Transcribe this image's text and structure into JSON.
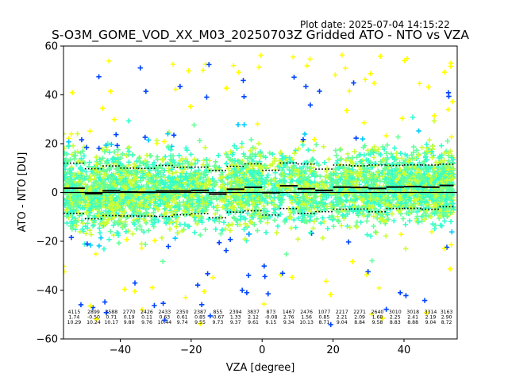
{
  "plot_date": "Plot date: 2025-07-04 14:15:22",
  "chart_data": {
    "type": "scatter",
    "title": "S-O3M_GOME_VOD_XX_M03_20250703Z Gridded ATO - NTO vs VZA",
    "xlabel": "VZA [degree]",
    "ylabel": "ATO - NTO [DU]",
    "xlim": [
      -56,
      55
    ],
    "ylim": [
      -60,
      60
    ],
    "xticks": [
      -40,
      -20,
      0,
      20,
      40
    ],
    "yticks": [
      -60,
      -40,
      -20,
      0,
      20,
      40,
      60
    ],
    "xtick_labels": [
      "−40",
      "−20",
      "0",
      "20",
      "40"
    ],
    "ytick_labels": [
      "−60",
      "−40",
      "−20",
      "0",
      "20",
      "40",
      "60"
    ],
    "grid": false,
    "legend": "none",
    "zero_line": 0,
    "bins": [
      {
        "x_start": -56,
        "x_end": -50,
        "count": "4115",
        "mean": "1.74",
        "std": "10.29"
      },
      {
        "x_start": -50,
        "x_end": -45,
        "count": "2899",
        "mean": "-0.50",
        "std": "10.24"
      },
      {
        "x_start": -45,
        "x_end": -40,
        "count": "3588",
        "mean": "0.71",
        "std": "10.17"
      },
      {
        "x_start": -40,
        "x_end": -35,
        "count": "2770",
        "mean": "0.19",
        "std": "9.80"
      },
      {
        "x_start": -35,
        "x_end": -30,
        "count": "2426",
        "mean": "0.11",
        "std": "9.76"
      },
      {
        "x_start": -30,
        "x_end": -25,
        "count": "2433",
        "mean": "0.63",
        "std": "10.44"
      },
      {
        "x_start": -25,
        "x_end": -20,
        "count": "2350",
        "mean": "0.61",
        "std": "9.74"
      },
      {
        "x_start": -20,
        "x_end": -15,
        "count": "2387",
        "mean": "0.85",
        "std": "9.55"
      },
      {
        "x_start": -15,
        "x_end": -10,
        "count": "855",
        "mean": "-0.67",
        "std": "9.73"
      },
      {
        "x_start": -10,
        "x_end": -5,
        "count": "2394",
        "mean": "1.33",
        "std": "9.37"
      },
      {
        "x_start": -5,
        "x_end": 0,
        "count": "3837",
        "mean": "2.12",
        "std": "9.61"
      },
      {
        "x_start": 0,
        "x_end": 5,
        "count": "873",
        "mean": "-0.08",
        "std": "9.15"
      },
      {
        "x_start": 5,
        "x_end": 10,
        "count": "1467",
        "mean": "2.76",
        "std": "9.34"
      },
      {
        "x_start": 10,
        "x_end": 15,
        "count": "2476",
        "mean": "1.56",
        "std": "10.13"
      },
      {
        "x_start": 15,
        "x_end": 20,
        "count": "1077",
        "mean": "0.85",
        "std": "8.71"
      },
      {
        "x_start": 20,
        "x_end": 25,
        "count": "2217",
        "mean": "2.21",
        "std": "9.04"
      },
      {
        "x_start": 25,
        "x_end": 30,
        "count": "2271",
        "mean": "2.09",
        "std": "8.84"
      },
      {
        "x_start": 30,
        "x_end": 35,
        "count": "2640",
        "mean": "1.68",
        "std": "9.58"
      },
      {
        "x_start": 35,
        "x_end": 40,
        "count": "3010",
        "mean": "2.25",
        "std": "8.83"
      },
      {
        "x_start": 40,
        "x_end": 45,
        "count": "3018",
        "mean": "2.41",
        "std": "8.88"
      },
      {
        "x_start": 45,
        "x_end": 50,
        "count": "3314",
        "mean": "2.19",
        "std": "9.04"
      },
      {
        "x_start": 50,
        "x_end": 54,
        "count": "3163",
        "mean": "2.90",
        "std": "8.72"
      }
    ],
    "marker": "plus",
    "colors": [
      "#0044ff",
      "#00ccff",
      "#33ffcc",
      "#66ff99",
      "#ccff33",
      "#ffff00"
    ],
    "line_colors": {
      "mean": "#000000",
      "std": "#000000",
      "zero": "#000000"
    }
  }
}
